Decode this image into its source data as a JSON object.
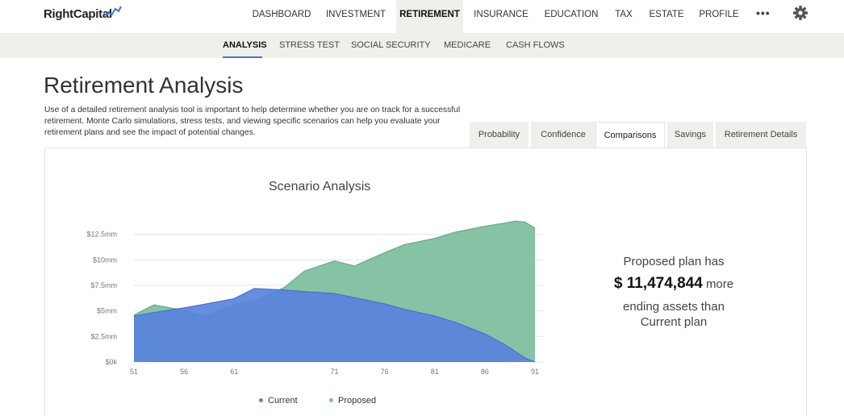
{
  "app": {
    "logo": "RightCapital"
  },
  "nav": {
    "items": [
      {
        "label": "DASHBOARD"
      },
      {
        "label": "INVESTMENT"
      },
      {
        "label": "RETIREMENT"
      },
      {
        "label": "INSURANCE"
      },
      {
        "label": "EDUCATION"
      },
      {
        "label": "TAX"
      },
      {
        "label": "ESTATE"
      },
      {
        "label": "PROFILE"
      }
    ],
    "active": "RETIREMENT",
    "more_icon": "ellipsis-icon",
    "settings_icon": "gear-icon"
  },
  "subnav": {
    "items": [
      {
        "label": "ANALYSIS"
      },
      {
        "label": "STRESS TEST"
      },
      {
        "label": "SOCIAL SECURITY"
      },
      {
        "label": "MEDICARE"
      },
      {
        "label": "CASH FLOWS"
      }
    ],
    "active": "ANALYSIS"
  },
  "page": {
    "title": "Retirement Analysis",
    "description": "Use of a detailed retirement analysis tool is important to help determine whether you are on track for a successful retirement. Monte Carlo simulations, stress tests, and viewing specific scenarios can help you evaluate your retirement plans and see the impact of potential changes."
  },
  "tabs": {
    "items": [
      {
        "label": "Probability"
      },
      {
        "label": "Confidence"
      },
      {
        "label": "Comparisons"
      },
      {
        "label": "Savings"
      },
      {
        "label": "Retirement Details"
      }
    ],
    "active": "Comparisons"
  },
  "summary": {
    "line1": "Proposed plan has",
    "amount": "$ 11,474,844",
    "more": "more",
    "line3": "ending assets than",
    "line4": "Current plan"
  },
  "colors": {
    "current": "#5a83dc",
    "proposed": "#7fbf9f",
    "accent": "#4a6fd6"
  },
  "chart_data": {
    "type": "area",
    "title": "Scenario Analysis",
    "xlabel": "",
    "ylabel": "",
    "x_ticks": [
      "51",
      "56",
      "61",
      "71",
      "76",
      "81",
      "86",
      "91"
    ],
    "y_ticks": [
      "$0k",
      "$2.5mm",
      "$5mm",
      "$7.5mm",
      "$10mm",
      "$12.5mm"
    ],
    "ylim": [
      0,
      13500000
    ],
    "xlim": [
      51,
      91
    ],
    "grid": true,
    "legend": "bottom",
    "x": [
      51,
      53,
      56,
      58,
      61,
      63,
      66,
      68,
      71,
      73,
      76,
      78,
      81,
      83,
      86,
      88,
      89,
      90,
      91
    ],
    "series": [
      {
        "name": "Current",
        "values": [
          4500000,
          4850000,
          5300000,
          5650000,
          6200000,
          7200000,
          7050000,
          6900000,
          6700000,
          6300000,
          5700000,
          5150000,
          4500000,
          3900000,
          2750000,
          1700000,
          1050000,
          400000,
          0
        ]
      },
      {
        "name": "Proposed",
        "values": [
          4600000,
          5600000,
          5050000,
          4450000,
          5600000,
          6000000,
          7300000,
          8900000,
          9900000,
          9400000,
          10700000,
          11500000,
          12100000,
          12700000,
          13300000,
          13600000,
          13800000,
          13700000,
          13100000
        ]
      }
    ]
  }
}
